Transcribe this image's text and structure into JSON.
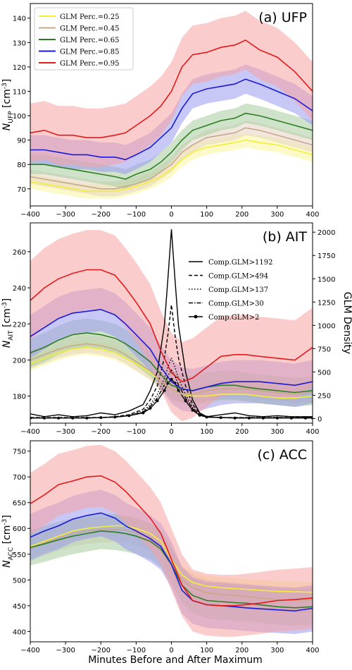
{
  "figure": {
    "xlabel": "Minutes Before and After Maximum"
  },
  "colors": {
    "p025": "#f2ef3a",
    "p045": "#c8a88a",
    "p065": "#2e7d22",
    "p085": "#1a1ad6",
    "p095": "#e31a1c",
    "band_p025": "#f7f59a",
    "band_p045": "#e8d4c2",
    "band_p065": "#a6cc9c",
    "band_p085": "#9a9af0",
    "band_p095": "#f7a3a3"
  },
  "chart_data": [
    {
      "type": "line",
      "panel_label": "(a)  UFP",
      "ylabel_main": "N",
      "ylabel_sub": "UFP",
      "ylabel_unit": "[cm",
      "ylabel_exp": "-3",
      "ylabel_close": "]",
      "xlim": [
        -400,
        400
      ],
      "ylim": [
        63,
        146
      ],
      "xticks": [
        -400,
        -300,
        -200,
        -100,
        0,
        100,
        200,
        300,
        400
      ],
      "yticks": [
        70,
        80,
        90,
        100,
        110,
        120,
        130,
        140
      ],
      "legend": [
        "GLM Perc.=0.25",
        "GLM Perc.=0.45",
        "GLM Perc.=0.65",
        "GLM Perc.=0.85",
        "GLM Perc.=0.95"
      ],
      "x": [
        -400,
        -360,
        -320,
        -280,
        -240,
        -200,
        -160,
        -130,
        -100,
        -60,
        -30,
        0,
        30,
        60,
        100,
        140,
        180,
        210,
        250,
        300,
        350,
        400
      ],
      "series": [
        {
          "name": "GLM Perc.=0.25",
          "color_key": "p025",
          "values": [
            73,
            72,
            71,
            70,
            69,
            69,
            69,
            70,
            71,
            73,
            75,
            78,
            82,
            85,
            87,
            88,
            89,
            90,
            89,
            88,
            86,
            84
          ],
          "band": [
            3,
            3,
            3,
            3,
            3,
            3,
            3,
            3,
            3,
            3,
            3,
            3,
            3,
            3,
            3,
            3,
            3,
            3,
            3,
            3,
            3,
            3
          ]
        },
        {
          "name": "GLM Perc.=0.45",
          "color_key": "p045",
          "values": [
            75,
            74,
            73,
            72,
            71,
            70,
            70,
            71,
            72,
            74,
            77,
            80,
            85,
            88,
            91,
            92,
            93,
            95,
            94,
            92,
            90,
            88
          ],
          "band": [
            3,
            3,
            3,
            3,
            3,
            3,
            3,
            3,
            3,
            3,
            3,
            3,
            3,
            3,
            3,
            3,
            3,
            3,
            3,
            3,
            3,
            3
          ]
        },
        {
          "name": "GLM Perc.=0.65",
          "color_key": "p065",
          "values": [
            80,
            80,
            79,
            78,
            77,
            76,
            75,
            74,
            76,
            78,
            81,
            85,
            90,
            94,
            96,
            98,
            99,
            101,
            100,
            98,
            96,
            94
          ],
          "band": [
            4,
            4,
            4,
            4,
            4,
            4,
            4,
            4,
            4,
            4,
            4,
            4,
            4,
            4,
            4,
            4,
            4,
            4,
            4,
            4,
            4,
            4
          ]
        },
        {
          "name": "GLM Perc.=0.85",
          "color_key": "p085",
          "values": [
            86,
            86,
            85,
            84,
            84,
            83,
            83,
            82,
            84,
            87,
            91,
            95,
            103,
            109,
            111,
            112,
            113,
            115,
            113,
            110,
            107,
            102
          ],
          "band": [
            6,
            6,
            6,
            6,
            6,
            6,
            6,
            6,
            6,
            6,
            6,
            6,
            6,
            6,
            6,
            6,
            6,
            6,
            6,
            6,
            6,
            6
          ]
        },
        {
          "name": "GLM Perc.=0.95",
          "color_key": "p095",
          "values": [
            93,
            94,
            92,
            92,
            91,
            91,
            92,
            93,
            96,
            100,
            104,
            110,
            120,
            125,
            126,
            128,
            129,
            131,
            127,
            124,
            118,
            110
          ],
          "band": [
            12,
            12,
            12,
            12,
            12,
            12,
            12,
            12,
            12,
            12,
            12,
            12,
            12,
            12,
            12,
            12,
            12,
            12,
            12,
            12,
            12,
            12
          ]
        }
      ]
    },
    {
      "type": "line",
      "panel_label": "(b)  AIT",
      "ylabel_main": "N",
      "ylabel_sub": "AIT",
      "ylabel_unit": "[cm",
      "ylabel_exp": "-3",
      "ylabel_close": "]",
      "ylabel_right": "GLM Density",
      "xlim": [
        -400,
        400
      ],
      "ylim": [
        165,
        276
      ],
      "y2lim": [
        -50,
        2100
      ],
      "xticks": [
        -400,
        -300,
        -200,
        -100,
        0,
        100,
        200,
        300,
        400
      ],
      "yticks": [
        180,
        200,
        220,
        240,
        260
      ],
      "y2ticks": [
        0,
        250,
        500,
        750,
        1000,
        1250,
        1500,
        1750,
        2000
      ],
      "x": [
        -400,
        -360,
        -320,
        -280,
        -240,
        -200,
        -160,
        -130,
        -100,
        -60,
        -30,
        0,
        30,
        60,
        100,
        140,
        180,
        210,
        250,
        300,
        350,
        400
      ],
      "series": [
        {
          "name": "GLM Perc.=0.25",
          "color_key": "p025",
          "values": [
            198,
            201,
            204,
            206,
            207,
            206,
            204,
            201,
            198,
            193,
            188,
            184,
            181,
            180,
            180,
            181,
            181,
            181,
            180,
            179,
            179,
            180
          ],
          "band": [
            4,
            4,
            4,
            4,
            4,
            4,
            4,
            4,
            4,
            4,
            4,
            4,
            4,
            4,
            4,
            4,
            4,
            4,
            4,
            4,
            4,
            4
          ]
        },
        {
          "name": "GLM Perc.=0.45",
          "color_key": "p045",
          "values": [
            200,
            203,
            206,
            208,
            209,
            208,
            206,
            203,
            199,
            194,
            188,
            184,
            181,
            181,
            183,
            184,
            184,
            184,
            183,
            182,
            181,
            182
          ],
          "band": [
            5,
            5,
            5,
            5,
            5,
            5,
            5,
            5,
            5,
            5,
            5,
            5,
            5,
            5,
            5,
            5,
            5,
            5,
            5,
            5,
            5,
            5
          ]
        },
        {
          "name": "GLM Perc.=0.65",
          "color_key": "p065",
          "values": [
            204,
            207,
            211,
            214,
            215,
            214,
            212,
            209,
            205,
            199,
            192,
            186,
            184,
            183,
            185,
            186,
            186,
            185,
            184,
            183,
            182,
            183
          ],
          "band": [
            8,
            8,
            8,
            8,
            8,
            8,
            8,
            8,
            8,
            8,
            8,
            8,
            8,
            8,
            8,
            8,
            8,
            8,
            8,
            8,
            8,
            8
          ]
        },
        {
          "name": "GLM Perc.=0.85",
          "color_key": "p085",
          "values": [
            213,
            218,
            223,
            226,
            227,
            228,
            225,
            220,
            214,
            206,
            196,
            188,
            184,
            183,
            185,
            187,
            188,
            188,
            188,
            187,
            186,
            188
          ],
          "band": [
            12,
            12,
            12,
            12,
            12,
            12,
            12,
            12,
            12,
            12,
            12,
            12,
            12,
            12,
            12,
            12,
            12,
            12,
            12,
            12,
            12,
            12
          ]
        },
        {
          "name": "GLM Perc.=0.95",
          "color_key": "p095",
          "values": [
            233,
            240,
            245,
            248,
            250,
            250,
            247,
            240,
            232,
            220,
            205,
            193,
            188,
            190,
            196,
            202,
            203,
            203,
            202,
            201,
            200,
            207
          ],
          "band": [
            22,
            22,
            22,
            22,
            22,
            22,
            22,
            22,
            22,
            22,
            22,
            22,
            22,
            22,
            22,
            22,
            22,
            22,
            22,
            22,
            22,
            22
          ]
        }
      ],
      "density_legend": [
        "Comp.GLM>1192",
        "Comp.GLM>494",
        "Comp.GLM>137",
        "Comp.GLM>30",
        "Comp.GLM>2"
      ],
      "density_x": [
        -400,
        -360,
        -320,
        -280,
        -240,
        -200,
        -160,
        -120,
        -80,
        -60,
        -40,
        -20,
        -10,
        0,
        10,
        20,
        40,
        60,
        80,
        100,
        140,
        180,
        220,
        260,
        300,
        340,
        380,
        400
      ],
      "density_series": [
        {
          "name": "Comp.GLM>1192",
          "dash": "solid",
          "values": [
            50,
            20,
            40,
            20,
            30,
            60,
            40,
            80,
            150,
            300,
            500,
            1000,
            1500,
            2030,
            1500,
            1000,
            500,
            200,
            60,
            20,
            40,
            60,
            30,
            20,
            30,
            20,
            20,
            20
          ]
        },
        {
          "name": "Comp.GLM>494",
          "dash": "dashed",
          "values": [
            10,
            10,
            10,
            10,
            10,
            10,
            20,
            40,
            100,
            200,
            350,
            650,
            900,
            1220,
            900,
            650,
            350,
            150,
            60,
            20,
            10,
            10,
            10,
            10,
            10,
            10,
            10,
            10
          ]
        },
        {
          "name": "Comp.GLM>137",
          "dash": "dotted",
          "values": [
            10,
            10,
            10,
            10,
            10,
            10,
            20,
            40,
            80,
            150,
            260,
            430,
            550,
            650,
            550,
            430,
            260,
            120,
            50,
            20,
            10,
            10,
            10,
            10,
            10,
            10,
            10,
            10
          ]
        },
        {
          "name": "Comp.GLM>30",
          "dash": "dashdot",
          "values": [
            5,
            5,
            5,
            5,
            5,
            10,
            15,
            30,
            70,
            130,
            220,
            360,
            460,
            520,
            460,
            360,
            220,
            110,
            40,
            15,
            10,
            5,
            5,
            5,
            5,
            5,
            5,
            5
          ]
        },
        {
          "name": "Comp.GLM>2",
          "dash": "dots",
          "values": [
            5,
            5,
            5,
            5,
            5,
            10,
            15,
            30,
            60,
            110,
            190,
            300,
            380,
            420,
            380,
            300,
            190,
            90,
            35,
            15,
            10,
            5,
            5,
            5,
            5,
            5,
            5,
            5
          ]
        }
      ]
    },
    {
      "type": "line",
      "panel_label": "(c)  ACC",
      "ylabel_main": "N",
      "ylabel_sub": "ACC",
      "ylabel_unit": "[cm",
      "ylabel_exp": "-3",
      "ylabel_close": "]",
      "xlim": [
        -400,
        400
      ],
      "ylim": [
        380,
        770
      ],
      "xticks": [
        -400,
        -300,
        -200,
        -100,
        0,
        100,
        200,
        300,
        400
      ],
      "yticks": [
        400,
        450,
        500,
        550,
        600,
        650,
        700,
        750
      ],
      "xlabel": "Minutes Before and After Maximum",
      "x": [
        -400,
        -360,
        -320,
        -280,
        -240,
        -200,
        -160,
        -130,
        -100,
        -60,
        -30,
        0,
        30,
        60,
        100,
        140,
        180,
        210,
        250,
        300,
        350,
        400
      ],
      "series": [
        {
          "name": "GLM Perc.=0.25",
          "color_key": "p025",
          "values": [
            565,
            575,
            585,
            595,
            600,
            603,
            605,
            605,
            600,
            590,
            575,
            540,
            510,
            495,
            488,
            485,
            483,
            482,
            480,
            478,
            477,
            476
          ],
          "band": [
            20,
            20,
            20,
            20,
            20,
            20,
            20,
            20,
            20,
            20,
            20,
            20,
            20,
            20,
            20,
            20,
            20,
            20,
            20,
            20,
            20,
            20
          ]
        },
        {
          "name": "GLM Perc.=0.45",
          "color_key": "p045",
          "values": [
            562,
            572,
            582,
            590,
            595,
            598,
            598,
            597,
            592,
            582,
            565,
            535,
            500,
            485,
            475,
            472,
            470,
            468,
            465,
            462,
            460,
            462
          ],
          "band": [
            25,
            25,
            25,
            25,
            25,
            25,
            25,
            25,
            25,
            25,
            25,
            25,
            25,
            25,
            25,
            25,
            25,
            25,
            25,
            25,
            25,
            25
          ]
        },
        {
          "name": "GLM Perc.=0.65",
          "color_key": "p065",
          "values": [
            563,
            570,
            578,
            585,
            590,
            595,
            593,
            590,
            585,
            575,
            560,
            530,
            490,
            470,
            460,
            458,
            456,
            455,
            452,
            448,
            446,
            448
          ],
          "band": [
            35,
            35,
            35,
            35,
            35,
            35,
            35,
            35,
            35,
            35,
            35,
            35,
            35,
            35,
            35,
            35,
            35,
            35,
            35,
            35,
            35,
            35
          ]
        },
        {
          "name": "GLM Perc.=0.85",
          "color_key": "p085",
          "values": [
            583,
            595,
            605,
            618,
            625,
            630,
            620,
            605,
            595,
            580,
            565,
            530,
            480,
            460,
            452,
            450,
            448,
            446,
            444,
            442,
            440,
            445
          ],
          "band": [
            45,
            45,
            45,
            45,
            45,
            45,
            45,
            45,
            45,
            45,
            45,
            45,
            45,
            45,
            45,
            45,
            45,
            45,
            45,
            45,
            45,
            45
          ]
        },
        {
          "name": "GLM Perc.=0.95",
          "color_key": "p095",
          "values": [
            648,
            665,
            685,
            692,
            700,
            702,
            690,
            672,
            650,
            620,
            590,
            540,
            490,
            460,
            452,
            450,
            450,
            452,
            455,
            460,
            462,
            465
          ],
          "band": [
            60,
            60,
            60,
            60,
            60,
            60,
            60,
            60,
            60,
            60,
            60,
            60,
            60,
            60,
            60,
            60,
            60,
            60,
            60,
            60,
            60,
            60
          ]
        }
      ]
    }
  ]
}
